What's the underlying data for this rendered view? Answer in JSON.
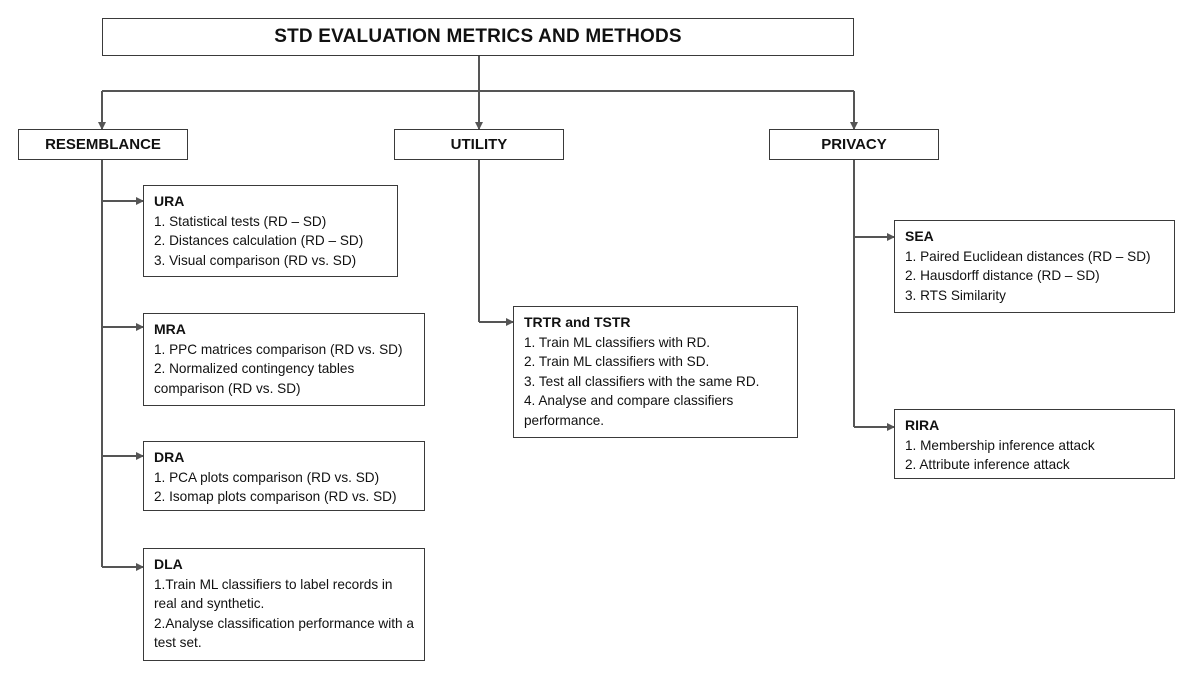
{
  "title": "STD EVALUATION METRICS AND METHODS",
  "categories": {
    "resemblance": "RESEMBLANCE",
    "utility": "UTILITY",
    "privacy": "PRIVACY"
  },
  "resemblance": {
    "ura": {
      "title": "URA",
      "items": [
        "1. Statistical tests (RD – SD)",
        "2. Distances calculation (RD – SD)",
        "3. Visual comparison (RD vs. SD)"
      ]
    },
    "mra": {
      "title": "MRA",
      "items": [
        "1. PPC matrices comparison (RD vs. SD)",
        "2. Normalized contingency tables comparison (RD vs. SD)"
      ]
    },
    "dra": {
      "title": "DRA",
      "items": [
        "1. PCA plots comparison (RD vs. SD)",
        "2. Isomap plots comparison (RD vs. SD)"
      ]
    },
    "dla": {
      "title": "DLA",
      "items": [
        "1.Train ML classifiers to label records in real and synthetic.",
        "2.Analyse classification performance with a test set."
      ]
    }
  },
  "utility": {
    "trtr": {
      "title": "TRTR and TSTR",
      "items": [
        "1. Train ML classifiers with RD.",
        "2. Train ML classifiers with SD.",
        "3. Test all classifiers with the same RD.",
        "4. Analyse and compare classifiers performance."
      ]
    }
  },
  "privacy": {
    "sea": {
      "title": "SEA",
      "items": [
        "1. Paired Euclidean distances (RD – SD)",
        "2. Hausdorff distance (RD – SD)",
        "3. RTS Similarity"
      ]
    },
    "rira": {
      "title": "RIRA",
      "items": [
        "1. Membership inference attack",
        "2. Attribute inference attack"
      ]
    }
  }
}
